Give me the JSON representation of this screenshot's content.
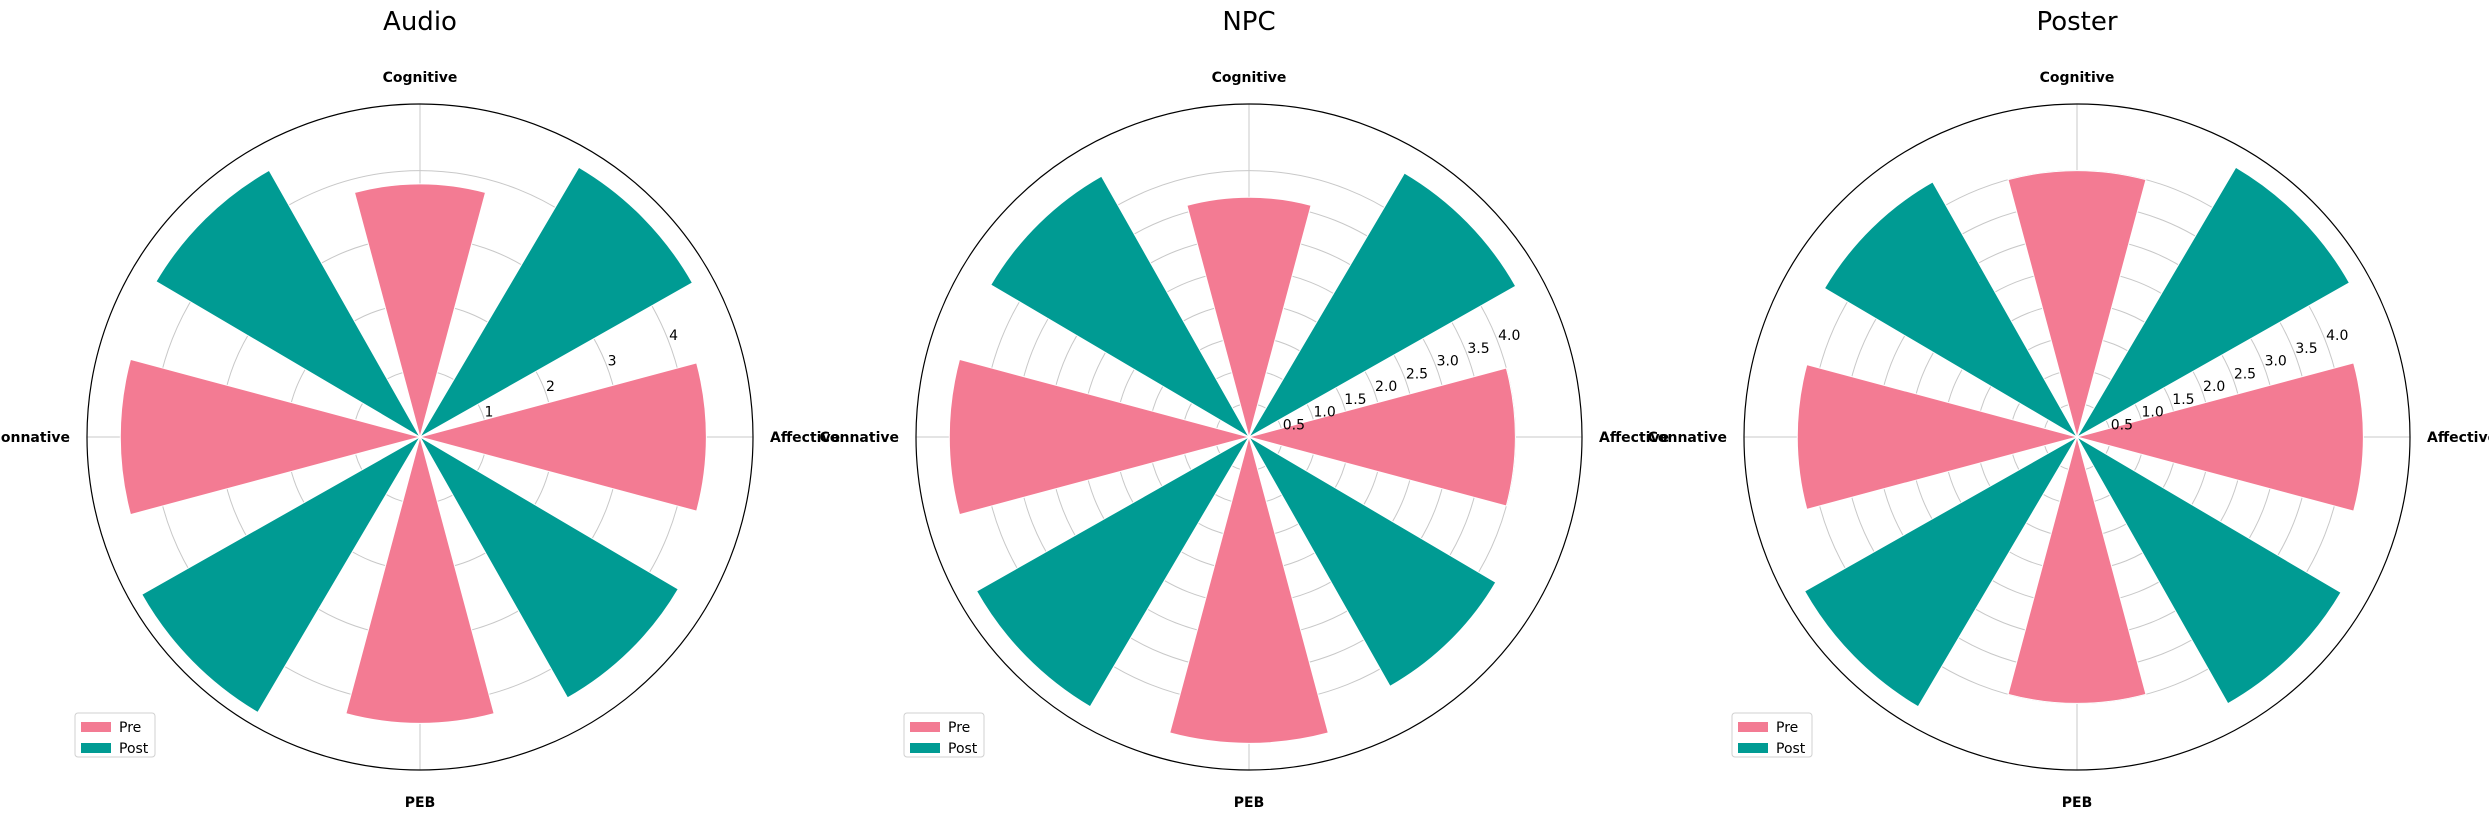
{
  "chart_data": [
    {
      "type": "bar",
      "polar": true,
      "title": "Audio",
      "categories": [
        "Affective",
        "Cognitive",
        "Connative",
        "PEB"
      ],
      "series": [
        {
          "name": "Pre",
          "values": [
            4.3,
            3.8,
            4.5,
            4.3
          ],
          "color": "#f37b93"
        },
        {
          "name": "Post",
          "values": [
            4.7,
            4.6,
            4.8,
            4.5
          ],
          "color": "#009b93"
        }
      ],
      "radial_ticks": [
        "1",
        "2",
        "3",
        "4"
      ],
      "radial_tick_values": [
        1,
        2,
        3,
        4
      ],
      "rlim": [
        0,
        5
      ],
      "grid": true,
      "legend": "lower-left"
    },
    {
      "type": "bar",
      "polar": true,
      "title": "NPC",
      "categories": [
        "Affective",
        "Cognitive",
        "Connative",
        "PEB"
      ],
      "series": [
        {
          "name": "Pre",
          "values": [
            4.0,
            3.6,
            4.5,
            4.6
          ],
          "color": "#f37b93"
        },
        {
          "name": "Post",
          "values": [
            4.6,
            4.5,
            4.7,
            4.3
          ],
          "color": "#009b93"
        }
      ],
      "radial_ticks": [
        "0.5",
        "1.0",
        "1.5",
        "2.0",
        "2.5",
        "3.0",
        "3.5",
        "4.0"
      ],
      "radial_tick_values": [
        0.5,
        1.0,
        1.5,
        2.0,
        2.5,
        3.0,
        3.5,
        4.0
      ],
      "rlim": [
        0,
        5
      ],
      "grid": true,
      "legend": "lower-left"
    },
    {
      "type": "bar",
      "polar": true,
      "title": "Poster",
      "categories": [
        "Affective",
        "Cognitive",
        "Connative",
        "PEB"
      ],
      "series": [
        {
          "name": "Pre",
          "values": [
            4.3,
            4.0,
            4.2,
            4.0
          ],
          "color": "#f37b93"
        },
        {
          "name": "Post",
          "values": [
            4.7,
            4.4,
            4.7,
            4.6
          ],
          "color": "#009b93"
        }
      ],
      "radial_ticks": [
        "0.5",
        "1.0",
        "1.5",
        "2.0",
        "2.5",
        "3.0",
        "3.5",
        "4.0"
      ],
      "radial_tick_values": [
        0.5,
        1.0,
        1.5,
        2.0,
        2.5,
        3.0,
        3.5,
        4.0
      ],
      "rlim": [
        0,
        5
      ],
      "grid": true,
      "legend": "lower-left"
    }
  ]
}
